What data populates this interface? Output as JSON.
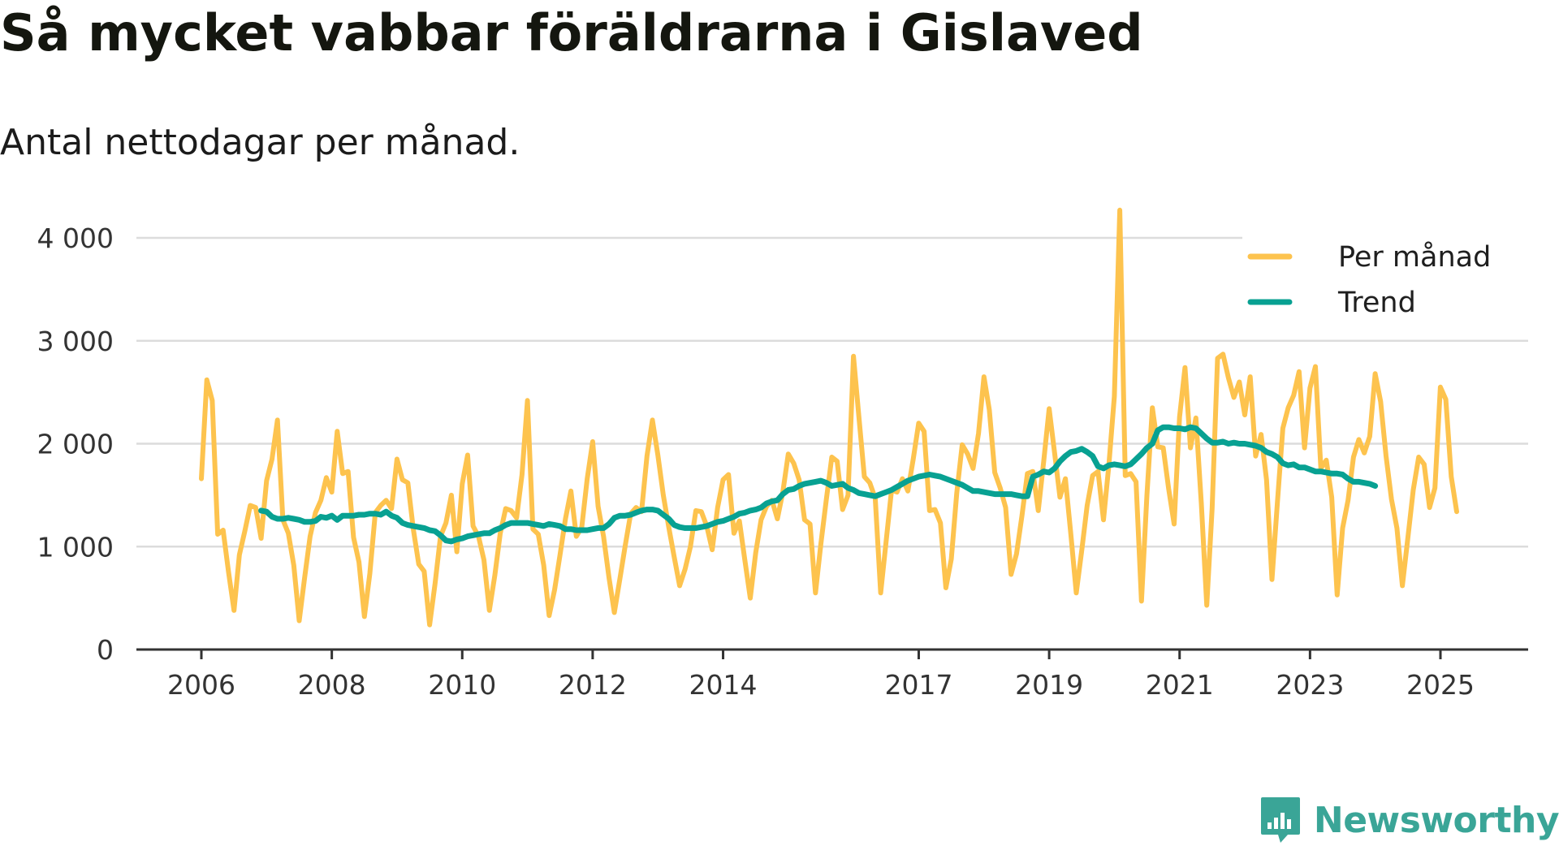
{
  "title": "Så mycket vabbar föräldrarna i Gislaved",
  "subtitle": "Antal nettodagar per månad.",
  "brand": {
    "name": "Newsworthy",
    "icon": "newsworthy-logo-icon",
    "color": "#3aa597"
  },
  "chart_data": {
    "type": "line",
    "title": "Så mycket vabbar föräldrarna i Gislaved",
    "subtitle": "Antal nettodagar per månad.",
    "xlabel": "",
    "ylabel": "",
    "ylim": [
      0,
      4300
    ],
    "xlim": [
      2005.5,
      2026.3
    ],
    "grid": true,
    "legend_position": "top-right",
    "y_ticks": [
      {
        "value": 0,
        "label": "0"
      },
      {
        "value": 1000,
        "label": "1 000"
      },
      {
        "value": 2000,
        "label": "2 000"
      },
      {
        "value": 3000,
        "label": "3 000"
      },
      {
        "value": 4000,
        "label": "4 000"
      }
    ],
    "x_ticks": [
      {
        "value": 2006,
        "label": "2006"
      },
      {
        "value": 2008,
        "label": "2008"
      },
      {
        "value": 2010,
        "label": "2010"
      },
      {
        "value": 2012,
        "label": "2012"
      },
      {
        "value": 2014,
        "label": "2014"
      },
      {
        "value": 2017,
        "label": "2017"
      },
      {
        "value": 2019,
        "label": "2019"
      },
      {
        "value": 2021,
        "label": "2021"
      },
      {
        "value": 2023,
        "label": "2023"
      },
      {
        "value": 2025,
        "label": "2025"
      }
    ],
    "series": [
      {
        "name": "Per månad",
        "color": "#fdc34e",
        "start": 2006.0,
        "step": 0.08333,
        "values": [
          1660,
          2620,
          2420,
          1120,
          1160,
          750,
          380,
          920,
          1150,
          1400,
          1380,
          1080,
          1640,
          1850,
          2230,
          1260,
          1130,
          820,
          280,
          700,
          1100,
          1330,
          1450,
          1670,
          1530,
          2120,
          1710,
          1730,
          1090,
          850,
          320,
          740,
          1330,
          1400,
          1450,
          1370,
          1850,
          1650,
          1620,
          1170,
          830,
          760,
          240,
          640,
          1100,
          1230,
          1500,
          950,
          1610,
          1890,
          1200,
          1100,
          870,
          380,
          720,
          1130,
          1370,
          1350,
          1280,
          1700,
          2420,
          1170,
          1120,
          820,
          330,
          580,
          920,
          1270,
          1540,
          1100,
          1190,
          1660,
          2020,
          1390,
          1100,
          700,
          360,
          680,
          1010,
          1320,
          1380,
          1340,
          1880,
          2230,
          1890,
          1500,
          1190,
          900,
          620,
          780,
          1000,
          1350,
          1340,
          1200,
          970,
          1380,
          1650,
          1700,
          1130,
          1250,
          870,
          500,
          940,
          1260,
          1390,
          1450,
          1270,
          1530,
          1900,
          1810,
          1650,
          1260,
          1220,
          550,
          1030,
          1460,
          1870,
          1830,
          1360,
          1500,
          2850,
          2260,
          1680,
          1620,
          1470,
          550,
          1050,
          1550,
          1530,
          1660,
          1540,
          1850,
          2200,
          2120,
          1350,
          1360,
          1230,
          600,
          880,
          1520,
          1990,
          1900,
          1760,
          2100,
          2650,
          2330,
          1720,
          1570,
          1380,
          730,
          930,
          1300,
          1710,
          1730,
          1350,
          1830,
          2340,
          1910,
          1480,
          1660,
          1120,
          550,
          960,
          1400,
          1690,
          1730,
          1260,
          1800,
          2460,
          4270,
          1690,
          1710,
          1630,
          470,
          1500,
          2350,
          1970,
          1960,
          1560,
          1220,
          2260,
          2740,
          1960,
          2250,
          1420,
          430,
          1370,
          2830,
          2870,
          2640,
          2450,
          2600,
          2280,
          2650,
          1880,
          2090,
          1650,
          680,
          1430,
          2150,
          2350,
          2470,
          2700,
          1960,
          2540,
          2750,
          1760,
          1840,
          1480,
          530,
          1180,
          1450,
          1870,
          2040,
          1910,
          2070,
          2680,
          2410,
          1880,
          1460,
          1180,
          620,
          1080,
          1550,
          1870,
          1800,
          1380,
          1570,
          2550,
          2430,
          1680,
          1340
        ]
      },
      {
        "name": "Trend",
        "color": "#08a192",
        "start": 2006.9167,
        "step": 0.08333,
        "values": [
          1350,
          1340,
          1290,
          1270,
          1270,
          1280,
          1270,
          1260,
          1240,
          1240,
          1250,
          1290,
          1280,
          1300,
          1260,
          1300,
          1300,
          1300,
          1310,
          1310,
          1320,
          1320,
          1310,
          1340,
          1300,
          1280,
          1230,
          1210,
          1200,
          1190,
          1180,
          1160,
          1150,
          1110,
          1060,
          1050,
          1070,
          1080,
          1100,
          1110,
          1120,
          1130,
          1130,
          1160,
          1180,
          1210,
          1230,
          1230,
          1230,
          1230,
          1220,
          1210,
          1200,
          1220,
          1210,
          1200,
          1170,
          1170,
          1160,
          1160,
          1160,
          1170,
          1180,
          1180,
          1220,
          1280,
          1300,
          1300,
          1310,
          1330,
          1350,
          1360,
          1360,
          1350,
          1310,
          1270,
          1210,
          1190,
          1180,
          1180,
          1180,
          1190,
          1200,
          1220,
          1240,
          1250,
          1270,
          1290,
          1320,
          1330,
          1350,
          1360,
          1380,
          1420,
          1440,
          1450,
          1510,
          1550,
          1560,
          1590,
          1610,
          1620,
          1630,
          1640,
          1620,
          1590,
          1600,
          1610,
          1570,
          1550,
          1520,
          1510,
          1500,
          1490,
          1510,
          1530,
          1550,
          1580,
          1610,
          1640,
          1660,
          1680,
          1690,
          1700,
          1690,
          1680,
          1660,
          1640,
          1620,
          1600,
          1570,
          1540,
          1540,
          1530,
          1520,
          1510,
          1510,
          1510,
          1510,
          1500,
          1490,
          1490,
          1680,
          1700,
          1730,
          1720,
          1760,
          1830,
          1880,
          1920,
          1930,
          1950,
          1920,
          1880,
          1780,
          1760,
          1790,
          1800,
          1790,
          1780,
          1800,
          1850,
          1900,
          1960,
          2000,
          2130,
          2160,
          2160,
          2150,
          2150,
          2140,
          2160,
          2150,
          2100,
          2050,
          2010,
          2010,
          2020,
          2000,
          2010,
          2000,
          2000,
          1990,
          1980,
          1960,
          1920,
          1900,
          1870,
          1810,
          1790,
          1800,
          1770,
          1770,
          1750,
          1730,
          1730,
          1720,
          1710,
          1710,
          1700,
          1660,
          1630,
          1630,
          1620,
          1610,
          1590
        ]
      }
    ]
  }
}
